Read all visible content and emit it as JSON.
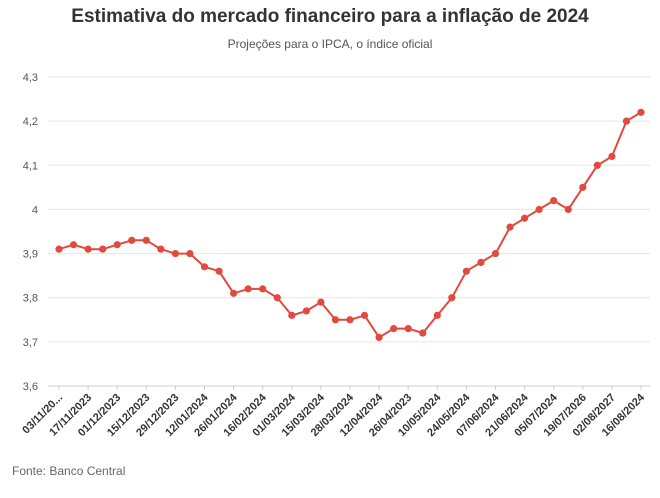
{
  "chart_data": {
    "type": "line",
    "title": "Estimativa do mercado financeiro para a inflação de 2024",
    "subtitle": "Projeções para o IPCA, o índice oficial",
    "source": "Fonte: Banco Central",
    "xlabel": "",
    "ylabel": "",
    "ylim": [
      3.6,
      4.3
    ],
    "yticks": [
      "3,6",
      "3,7",
      "3,8",
      "3,9",
      "4",
      "4,1",
      "4,2",
      "4,3"
    ],
    "grid": true,
    "legend": "none",
    "colors": {
      "line": "#e04a3f",
      "grid": "#e6e6e6",
      "axis": "#cccccc"
    },
    "x_tick_labels": [
      "03/11/20...",
      "17/11/2023",
      "01/12/2023",
      "15/12/2023",
      "29/12/2023",
      "12/01/2024",
      "26/01/2024",
      "16/02/2024",
      "01/03/2024",
      "15/03/2024",
      "28/03/2024",
      "12/04/2024",
      "26/04/2023",
      "10/05/2024",
      "24/05/2024",
      "07/06/2024",
      "21/06/2024",
      "05/07/2024",
      "19/07/2026",
      "02/08/2027",
      "16/08/2024"
    ],
    "values": [
      3.91,
      3.92,
      3.91,
      3.91,
      3.92,
      3.93,
      3.93,
      3.91,
      3.9,
      3.9,
      3.87,
      3.86,
      3.81,
      3.82,
      3.82,
      3.8,
      3.76,
      3.77,
      3.79,
      3.75,
      3.75,
      3.76,
      3.71,
      3.73,
      3.73,
      3.72,
      3.76,
      3.8,
      3.86,
      3.88,
      3.9,
      3.96,
      3.98,
      4.0,
      4.02,
      4.0,
      4.05,
      4.1,
      4.12,
      4.2,
      4.22
    ]
  }
}
